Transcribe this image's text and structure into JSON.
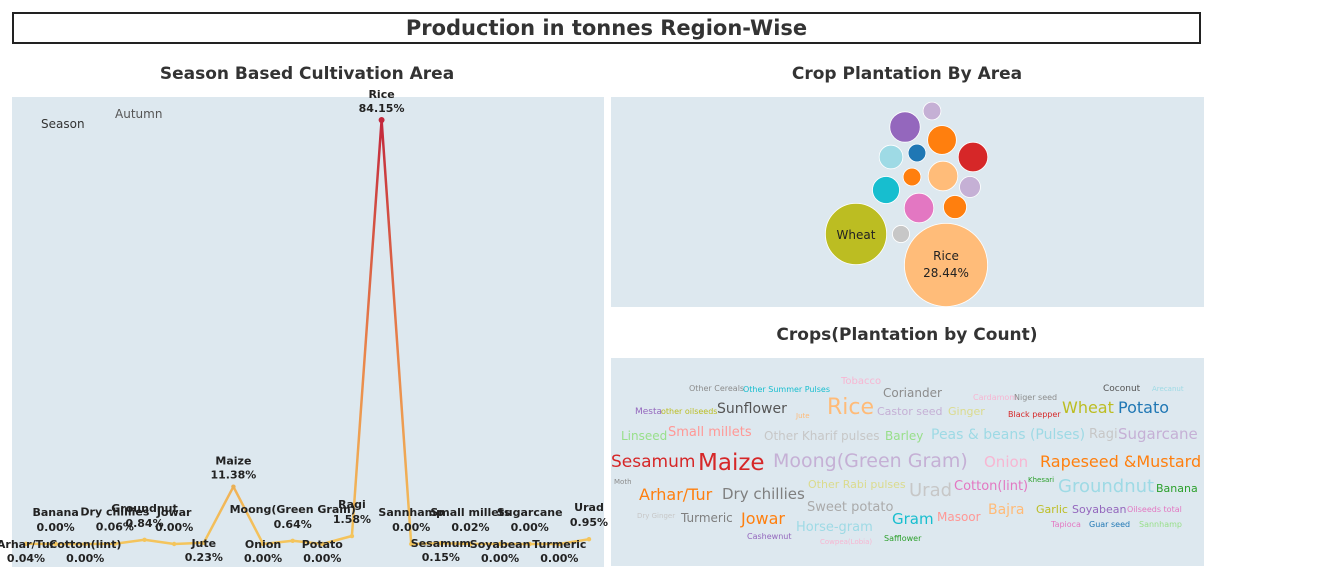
{
  "dashboard_title": "Production in tonnes Region-Wise",
  "chart_data": [
    {
      "type": "line",
      "title": "Season Based Cultivation Area",
      "legend_label": "Season",
      "series_name": "Autumn",
      "ylim": [
        0,
        100
      ],
      "points": [
        {
          "crop": "Arhar/Tur",
          "value": 0.04,
          "text": "0.04%"
        },
        {
          "crop": "Banana",
          "value": 0.0,
          "text": "0.00%"
        },
        {
          "crop": "Cotton(lint)",
          "value": 0.0,
          "text": "0.00%"
        },
        {
          "crop": "Dry chillies",
          "value": 0.06,
          "text": "0.06%"
        },
        {
          "crop": "Groundnut",
          "value": 0.84,
          "text": "0.84%"
        },
        {
          "crop": "Jowar",
          "value": 0.0,
          "text": "0.00%"
        },
        {
          "crop": "Jute",
          "value": 0.23,
          "text": "0.23%"
        },
        {
          "crop": "Maize",
          "value": 11.38,
          "text": "11.38%"
        },
        {
          "crop": "Onion",
          "value": 0.0,
          "text": "0.00%"
        },
        {
          "crop": "Moong(Green Gram)",
          "value": 0.64,
          "text": "0.64%"
        },
        {
          "crop": "Potato",
          "value": 0.0,
          "text": "0.00%"
        },
        {
          "crop": "Ragi",
          "value": 1.58,
          "text": "1.58%"
        },
        {
          "crop": "Rice",
          "value": 84.15,
          "text": "84.15%"
        },
        {
          "crop": "Sannhamp",
          "value": 0.0,
          "text": "0.00%"
        },
        {
          "crop": "Sesamum",
          "value": 0.15,
          "text": "0.15%"
        },
        {
          "crop": "Small millets",
          "value": 0.02,
          "text": "0.02%"
        },
        {
          "crop": "Soyabean",
          "value": 0.0,
          "text": "0.00%"
        },
        {
          "crop": "Sugarcane",
          "value": 0.0,
          "text": "0.00%"
        },
        {
          "crop": "Turmeric",
          "value": 0.0,
          "text": "0.00%"
        },
        {
          "crop": "Urad",
          "value": 0.95,
          "text": "0.95%"
        }
      ]
    },
    {
      "type": "bubble",
      "title": "Crop Plantation By Area",
      "bubbles": [
        {
          "label": "Rice",
          "value": 28.44,
          "text": "28.44%",
          "color": "#ffbc79"
        },
        {
          "label": "Wheat",
          "value": 15.4,
          "text": "",
          "color": "#bcbd22"
        },
        {
          "label": "",
          "value": 3.6,
          "color": "#d62728"
        },
        {
          "label": "",
          "value": 3.8,
          "color": "#9467bd"
        },
        {
          "label": "",
          "value": 3.6,
          "color": "#e377c2"
        },
        {
          "label": "",
          "value": 3.4,
          "color": "#ff7f0e"
        },
        {
          "label": "",
          "value": 3.6,
          "color": "#ffbc79"
        },
        {
          "label": "",
          "value": 3.0,
          "color": "#17becf"
        },
        {
          "label": "",
          "value": 2.3,
          "color": "#9edae5"
        },
        {
          "label": "",
          "value": 2.2,
          "color": "#ff7f0e"
        },
        {
          "label": "",
          "value": 1.8,
          "color": "#c5b0d5"
        },
        {
          "label": "",
          "value": 1.3,
          "color": "#c5b0d5"
        },
        {
          "label": "",
          "value": 1.3,
          "color": "#1f77b4"
        },
        {
          "label": "",
          "value": 1.3,
          "color": "#ff7f0e"
        },
        {
          "label": "",
          "value": 1.2,
          "color": "#c7c7c7"
        }
      ]
    },
    {
      "type": "wordcloud",
      "title": "Crops(Plantation by Count)",
      "words": [
        {
          "text": "Other Cereals",
          "color": "#8c8c8c"
        },
        {
          "text": "Other Summer Pulses",
          "color": "#17becf"
        },
        {
          "text": "Tobacco",
          "color": "#f7b6d2"
        },
        {
          "text": "Coriander",
          "color": "#8c8c8c"
        },
        {
          "text": "Cardamom",
          "color": "#f7b6d2"
        },
        {
          "text": "Niger seed",
          "color": "#8c8c8c"
        },
        {
          "text": "Coconut",
          "color": "#555555"
        },
        {
          "text": "Arecanut",
          "color": "#9edae5"
        },
        {
          "text": "Mesta",
          "color": "#9467bd"
        },
        {
          "text": "other oilseeds",
          "color": "#bcbd22"
        },
        {
          "text": "Sunflower",
          "color": "#555555"
        },
        {
          "text": "Jute",
          "color": "#ffbb78"
        },
        {
          "text": "Rice",
          "color": "#ffbb78"
        },
        {
          "text": "Castor seed",
          "color": "#c5b0d5"
        },
        {
          "text": "Ginger",
          "color": "#dbdb8d"
        },
        {
          "text": "Black pepper",
          "color": "#d62728"
        },
        {
          "text": "Wheat",
          "color": "#bcbd22"
        },
        {
          "text": "Potato",
          "color": "#1f77b4"
        },
        {
          "text": "Linseed",
          "color": "#98df8a"
        },
        {
          "text": "Small millets",
          "color": "#ff9896"
        },
        {
          "text": "Other Kharif pulses",
          "color": "#c7c7c7"
        },
        {
          "text": "Barley",
          "color": "#98df8a"
        },
        {
          "text": "Peas & beans (Pulses)",
          "color": "#9edae5"
        },
        {
          "text": "Ragi",
          "color": "#c7c7c7"
        },
        {
          "text": "Sugarcane",
          "color": "#c5b0d5"
        },
        {
          "text": "Sesamum",
          "color": "#d62728"
        },
        {
          "text": "Maize",
          "color": "#d62728"
        },
        {
          "text": "Moong(Green Gram)",
          "color": "#c5b0d5"
        },
        {
          "text": "Onion",
          "color": "#f7b6d2"
        },
        {
          "text": "Rapeseed &Mustard",
          "color": "#ff7f0e"
        },
        {
          "text": "Moth",
          "color": "#8c8c8c"
        },
        {
          "text": "Other Rabi pulses",
          "color": "#dbdb8d"
        },
        {
          "text": "Khesari",
          "color": "#2ca02c"
        },
        {
          "text": "Arhar/Tur",
          "color": "#ff7f0e"
        },
        {
          "text": "Dry chillies",
          "color": "#7f7f7f"
        },
        {
          "text": "Urad",
          "color": "#c7c7c7"
        },
        {
          "text": "Cotton(lint)",
          "color": "#e377c2"
        },
        {
          "text": "Groundnut",
          "color": "#9edae5"
        },
        {
          "text": "Banana",
          "color": "#2ca02c"
        },
        {
          "text": "Dry Ginger",
          "color": "#c7c7c7"
        },
        {
          "text": "Turmeric",
          "color": "#7f7f7f"
        },
        {
          "text": "Jowar",
          "color": "#ff7f0e"
        },
        {
          "text": "Sweet potato",
          "color": "#aaaaaa"
        },
        {
          "text": "Gram",
          "color": "#17becf"
        },
        {
          "text": "Masoor",
          "color": "#ff9896"
        },
        {
          "text": "Bajra",
          "color": "#ffbb78"
        },
        {
          "text": "Garlic",
          "color": "#bcbd22"
        },
        {
          "text": "Soyabean",
          "color": "#9467bd"
        },
        {
          "text": "Oilseeds total",
          "color": "#e377c2"
        },
        {
          "text": "Horse-gram",
          "color": "#9edae5"
        },
        {
          "text": "Tapioca",
          "color": "#e377c2"
        },
        {
          "text": "Guar seed",
          "color": "#1f77b4"
        },
        {
          "text": "Sannhamp",
          "color": "#98df8a"
        },
        {
          "text": "Cashewnut",
          "color": "#9467bd"
        },
        {
          "text": "Cowpea(Lobia)",
          "color": "#f7b6d2"
        },
        {
          "text": "Safflower",
          "color": "#2ca02c"
        }
      ]
    }
  ]
}
